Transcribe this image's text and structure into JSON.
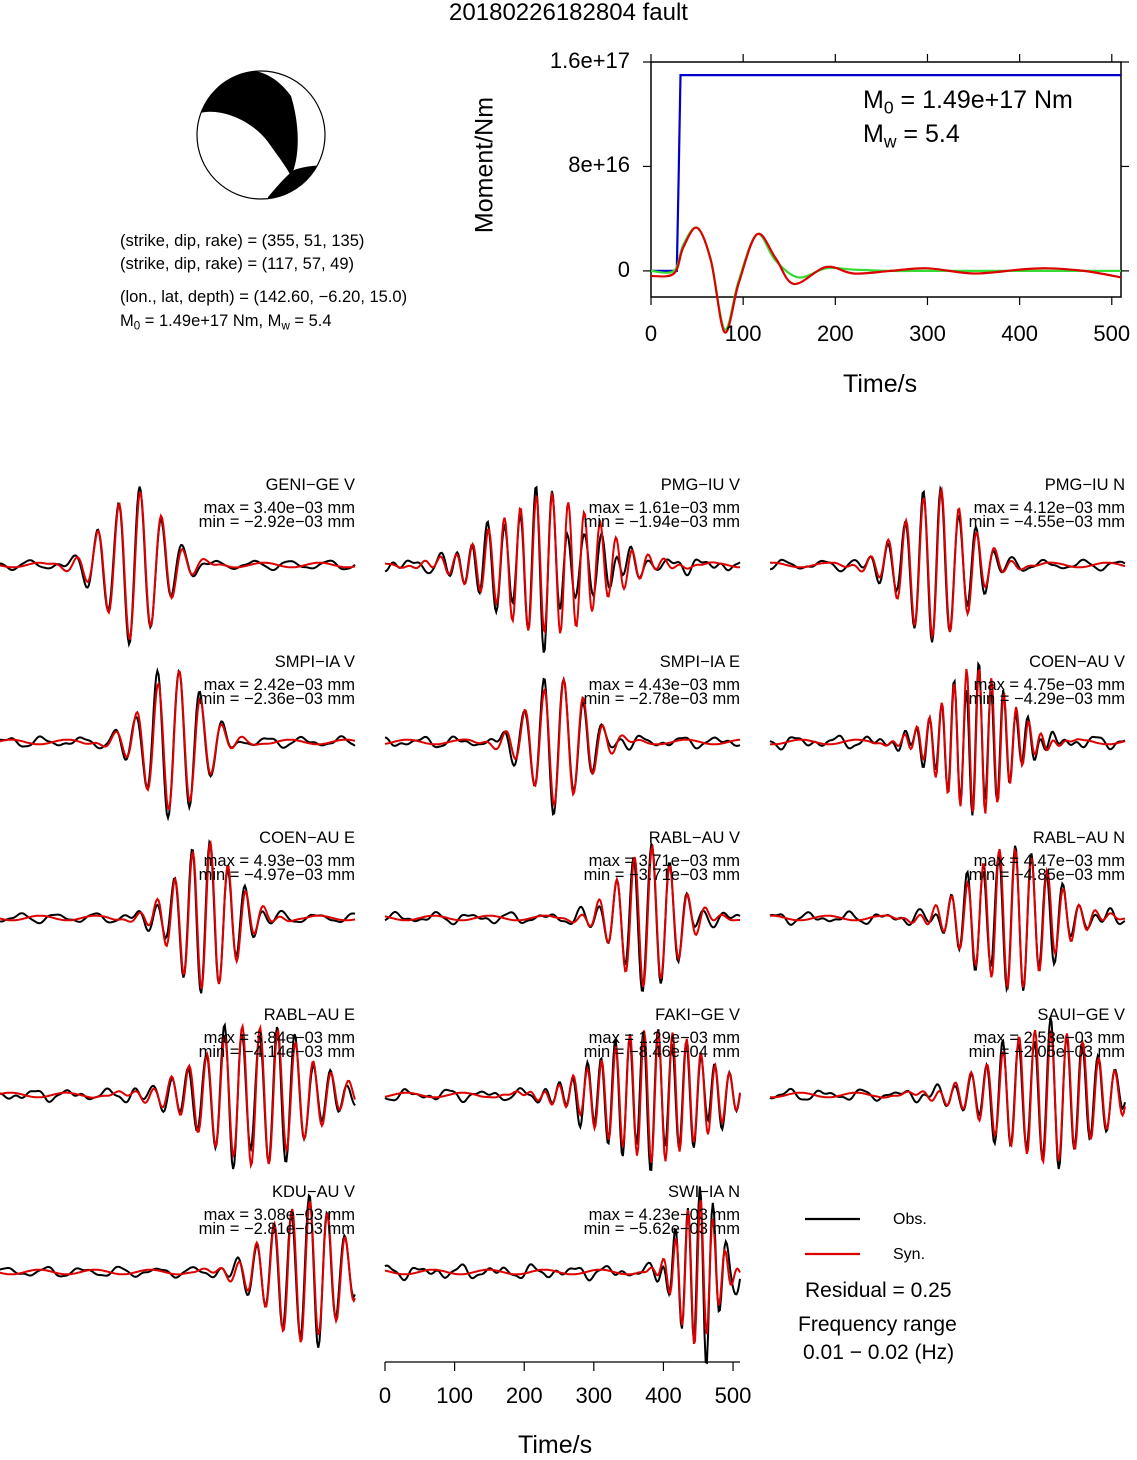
{
  "title": "20180226182804 fault",
  "focal_mechanism": {
    "line1": "(strike, dip, rake) = (355, 51, 135)",
    "line2": "(strike, dip, rake) = (117, 57, 49)",
    "line3": "(lon., lat, depth) = (142.60, −6.20, 15.0)",
    "line4_m0": "1.49e+17 Nm",
    "line4_mw": "5.4",
    "colors": {
      "fill": "#000000",
      "paper": "#ffffff"
    }
  },
  "chart_data": [
    {
      "type": "line",
      "id": "moment-function",
      "xlabel": "Time/s",
      "ylabel": "Moment/Nm",
      "xlim": [
        0,
        510
      ],
      "ylim": [
        -20000000000000000,
        160000000000000000
      ],
      "x_ticks": [
        0,
        100,
        200,
        300,
        400,
        500
      ],
      "y_ticks": [
        0,
        80000000000000000,
        160000000000000000
      ],
      "y_tick_labels": [
        "0",
        "8e+16",
        "1.6e+17"
      ],
      "annotation": {
        "m0_value": "1.49e+17 Nm",
        "mw_value": "5.4"
      },
      "series": [
        {
          "color": "#0000cc",
          "x": [
            0,
            28,
            30,
            32,
            510
          ],
          "y": [
            0,
            0,
            70000000000000000,
            150000000000000000,
            150000000000000000
          ]
        },
        {
          "color": "#33dd33",
          "x": [
            0,
            25,
            35,
            50,
            65,
            80,
            95,
            115,
            135,
            160,
            190,
            220,
            260,
            300,
            350,
            400,
            450,
            510
          ],
          "y": [
            0,
            0,
            20000000000000000,
            33000000000000000,
            8000000000000000,
            -45000000000000000,
            -8000000000000000,
            28000000000000000,
            8000000000000000,
            -5000000000000000,
            2000000000000000,
            1000000000000000,
            0,
            0,
            0,
            0,
            0,
            0
          ]
        },
        {
          "color": "#dd0000",
          "x": [
            0,
            25,
            35,
            50,
            65,
            80,
            95,
            115,
            135,
            155,
            190,
            220,
            260,
            300,
            350,
            400,
            430,
            470,
            510
          ],
          "y": [
            -4000000000000000,
            -2000000000000000,
            18000000000000000,
            33000000000000000,
            8000000000000000,
            -47000000000000000,
            -10000000000000000,
            28000000000000000,
            10000000000000000,
            -10000000000000000,
            3000000000000000,
            -2000000000000000,
            0,
            2000000000000000,
            -2000000000000000,
            1000000000000000,
            2000000000000000,
            0,
            -5000000000000000
          ]
        }
      ]
    },
    {
      "type": "line",
      "id": "waveforms",
      "xlabel": "Time/s",
      "xlim": [
        0,
        510
      ],
      "x_ticks": [
        0,
        100,
        200,
        300,
        400,
        500
      ],
      "legend": {
        "obs": "Obs.",
        "syn": "Syn.",
        "obs_color": "#000000",
        "syn_color": "#dd0000"
      },
      "residual": "Residual = 0.25",
      "frequency_label": "Frequency range",
      "frequency_value": "0.01 − 0.02 (Hz)",
      "stations": [
        {
          "name": "GENI−GE V",
          "max": "max = 3.40e−03 mm",
          "min": "min = −2.92e−03 mm",
          "center": 0.38,
          "amp": 0.95,
          "per": 0.06,
          "d": 0.08,
          "mis": 0.2,
          "seed": 1
        },
        {
          "name": "PMG−IU V",
          "max": "max = 1.61e−03 mm",
          "min": "min = −1.94e−03 mm",
          "center": 0.46,
          "amp": 0.9,
          "per": 0.045,
          "d": 0.14,
          "mis": 0.75,
          "seed": 2
        },
        {
          "name": "PMG−IU N",
          "max": "max = 4.12e−03 mm",
          "min": "min = −4.55e−03 mm",
          "center": 0.47,
          "amp": 0.95,
          "per": 0.05,
          "d": 0.09,
          "mis": 0.3,
          "seed": 3
        },
        {
          "name": "SMPI−IA V",
          "max": "max = 2.42e−03 mm",
          "min": "min = −2.36e−03 mm",
          "center": 0.49,
          "amp": 0.9,
          "per": 0.06,
          "d": 0.08,
          "mis": 0.35,
          "seed": 4
        },
        {
          "name": "SMPI−IA E",
          "max": "max = 4.43e−03 mm",
          "min": "min = −2.78e−03 mm",
          "center": 0.49,
          "amp": 0.8,
          "per": 0.055,
          "d": 0.08,
          "mis": 0.45,
          "seed": 5
        },
        {
          "name": "COEN−AU V",
          "max": "max = 4.75e−03 mm",
          "min": "min = −4.29e−03 mm",
          "center": 0.58,
          "amp": 0.95,
          "per": 0.035,
          "d": 0.09,
          "mis": 0.6,
          "seed": 6
        },
        {
          "name": "COEN−AU E",
          "max": "max = 4.93e−03 mm",
          "min": "min = −4.97e−03 mm",
          "center": 0.58,
          "amp": 0.95,
          "per": 0.05,
          "d": 0.08,
          "mis": 0.25,
          "seed": 7
        },
        {
          "name": "RABL−AU V",
          "max": "max = 3.71e−03 mm",
          "min": "min = −3.71e−03 mm",
          "center": 0.74,
          "amp": 0.9,
          "per": 0.05,
          "d": 0.08,
          "mis": 0.45,
          "seed": 8
        },
        {
          "name": "RABL−AU N",
          "max": "max = 4.47e−03 mm",
          "min": "min = −4.85e−03 mm",
          "center": 0.68,
          "amp": 0.9,
          "per": 0.045,
          "d": 0.11,
          "mis": 0.5,
          "seed": 9
        },
        {
          "name": "RABL−AU E",
          "max": "max = 3.84e−03 mm",
          "min": "min = −4.14e−03 mm",
          "center": 0.72,
          "amp": 0.9,
          "per": 0.05,
          "d": 0.14,
          "mis": 0.5,
          "seed": 10
        },
        {
          "name": "FAKI−GE V",
          "max": "max = 1.29e−03 mm",
          "min": "min = −8.46e−04 mm",
          "center": 0.76,
          "amp": 0.85,
          "per": 0.04,
          "d": 0.14,
          "mis": 0.55,
          "seed": 11
        },
        {
          "name": "SAUI−GE V",
          "max": "max = 2.53e−03 mm",
          "min": "min = −2.05e−03 mm",
          "center": 0.78,
          "amp": 0.85,
          "per": 0.045,
          "d": 0.14,
          "mis": 0.45,
          "seed": 12
        },
        {
          "name": "KDU−AU V",
          "max": "max = 3.08e−03 mm",
          "min": "min = −2.81e−03 mm",
          "center": 0.86,
          "amp": 0.9,
          "per": 0.05,
          "d": 0.1,
          "mis": 0.3,
          "seed": 13
        },
        {
          "name": "SWI−IA N",
          "max": "max = 4.23e−03 mm",
          "min": "min = −5.62e−03 mm",
          "center": 0.88,
          "amp": 0.95,
          "per": 0.035,
          "d": 0.05,
          "mis": 0.7,
          "seed": 14
        }
      ]
    }
  ]
}
